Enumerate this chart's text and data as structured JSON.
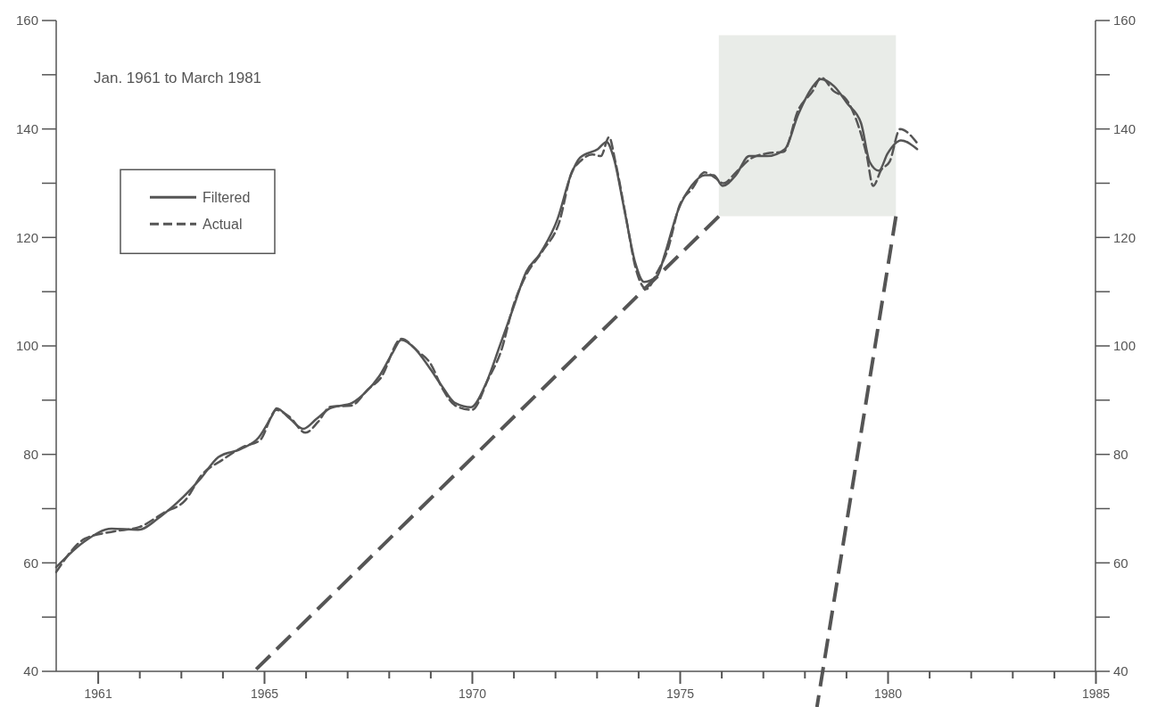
{
  "chart_data": {
    "type": "line",
    "annotations": [
      "Jan. 1961 to March 1981"
    ],
    "xlim": [
      1960,
      1985
    ],
    "xticks": [
      {
        "value": 1961,
        "label": "1961"
      },
      {
        "value": 1962,
        "label": null
      },
      {
        "value": 1963,
        "label": null
      },
      {
        "value": 1964,
        "label": null
      },
      {
        "value": 1965,
        "label": "1965"
      },
      {
        "value": 1966,
        "label": null
      },
      {
        "value": 1967,
        "label": null
      },
      {
        "value": 1968,
        "label": null
      },
      {
        "value": 1969,
        "label": null
      },
      {
        "value": 1970,
        "label": "1970"
      },
      {
        "value": 1971,
        "label": null
      },
      {
        "value": 1972,
        "label": null
      },
      {
        "value": 1973,
        "label": null
      },
      {
        "value": 1974,
        "label": null
      },
      {
        "value": 1975,
        "label": "1975"
      },
      {
        "value": 1976,
        "label": null
      },
      {
        "value": 1977,
        "label": null
      },
      {
        "value": 1978,
        "label": null
      },
      {
        "value": 1979,
        "label": null
      },
      {
        "value": 1980,
        "label": "1980"
      },
      {
        "value": 1981,
        "label": null
      },
      {
        "value": 1982,
        "label": null
      },
      {
        "value": 1983,
        "label": null
      },
      {
        "value": 1984,
        "label": null
      },
      {
        "value": 1985,
        "label": "1985"
      }
    ],
    "ylim": [
      40,
      160
    ],
    "yticks": [
      40,
      {
        "value": 50,
        "label": null
      },
      60,
      {
        "value": 70,
        "label": null
      },
      80,
      {
        "value": 90,
        "label": null
      },
      100,
      {
        "value": 110,
        "label": null
      },
      120,
      {
        "value": 130,
        "label": null
      },
      140,
      {
        "value": 150,
        "label": null
      },
      160
    ],
    "y2lim": [
      40,
      160
    ],
    "y2ticks": [
      40,
      {
        "value": 50,
        "label": null
      },
      60,
      {
        "value": 70,
        "label": null
      },
      80,
      {
        "value": 90,
        "label": null
      },
      100,
      {
        "value": 110,
        "label": null
      },
      120,
      {
        "value": 130,
        "label": null
      },
      140,
      {
        "value": 150,
        "label": null
      },
      160
    ],
    "grid": false,
    "legend": "top left",
    "series": [
      {
        "name": "Filtered",
        "color": "#555555",
        "line_style": "solid",
        "x": [
          1960.0,
          1960.69,
          1961.33,
          1961.97,
          1962.5,
          1963.05,
          1963.48,
          1963.9,
          1964.44,
          1964.87,
          1965.19,
          1965.3,
          1965.62,
          1965.94,
          1966.27,
          1966.59,
          1967.12,
          1967.45,
          1967.77,
          1968.09,
          1968.3,
          1968.63,
          1968.95,
          1969.27,
          1969.59,
          1969.98,
          1970.34,
          1970.67,
          1970.99,
          1971.31,
          1971.63,
          1972.06,
          1972.38,
          1972.6,
          1973.03,
          1973.24,
          1973.41,
          1973.67,
          1973.93,
          1974.14,
          1974.46,
          1974.64,
          1974.96,
          1975.28,
          1975.6,
          1975.82,
          1976.03,
          1976.35,
          1976.67,
          1977.1,
          1977.53,
          1977.85,
          1978.18,
          1978.39,
          1978.71,
          1979.03,
          1979.36,
          1979.57,
          1979.79,
          1980.0,
          1980.32,
          1980.71
        ],
        "values": [
          59.2,
          64.0,
          66.3,
          66.1,
          68.5,
          72.1,
          75.6,
          79.5,
          81.0,
          83.1,
          87.1,
          88.5,
          86.6,
          84.7,
          86.6,
          88.5,
          89.5,
          91.5,
          94.4,
          98.7,
          101.1,
          99.5,
          96.3,
          92.7,
          89.5,
          88.7,
          93.1,
          100.0,
          106.9,
          113.7,
          116.9,
          123.4,
          131.5,
          134.7,
          136.3,
          137.6,
          134.7,
          125.0,
          115.3,
          111.8,
          112.9,
          116.9,
          125.0,
          129.5,
          131.5,
          131.5,
          129.5,
          131.5,
          135.0,
          135.0,
          136.3,
          142.7,
          147.6,
          149.2,
          147.9,
          144.7,
          141.1,
          133.9,
          132.3,
          135.5,
          137.9,
          136.3
        ]
      },
      {
        "name": "Actual",
        "color": "#555555",
        "line_style": "dashed",
        "x": [
          1960.0,
          1960.7,
          1961.4,
          1962.0,
          1962.6,
          1963.1,
          1963.5,
          1964.0,
          1964.5,
          1964.9,
          1965.3,
          1965.6,
          1966.0,
          1966.3,
          1966.6,
          1967.1,
          1967.5,
          1967.8,
          1968.3,
          1968.7,
          1969.0,
          1969.3,
          1969.6,
          1970.0,
          1970.4,
          1970.7,
          1971.0,
          1971.3,
          1971.7,
          1972.1,
          1972.4,
          1972.6,
          1972.9,
          1973.1,
          1973.3,
          1973.45,
          1973.7,
          1973.95,
          1974.2,
          1974.45,
          1974.7,
          1975.0,
          1975.3,
          1975.6,
          1975.85,
          1976.05,
          1976.35,
          1976.7,
          1977.1,
          1977.5,
          1977.85,
          1978.2,
          1978.4,
          1978.7,
          1979.0,
          1979.3,
          1979.5,
          1979.65,
          1979.85,
          1980.05,
          1980.3,
          1980.7
        ],
        "values": [
          58.3,
          64.5,
          65.8,
          66.6,
          69.3,
          71.5,
          76.2,
          79.0,
          81.4,
          82.6,
          88.2,
          87.0,
          84.0,
          86.0,
          88.8,
          89.0,
          92.0,
          94.0,
          101.3,
          99.0,
          96.8,
          92.0,
          89.0,
          88.2,
          94.0,
          99.0,
          107.5,
          113.0,
          117.5,
          122.8,
          132.0,
          134.0,
          135.3,
          135.0,
          138.5,
          134.0,
          124.0,
          114.0,
          110.5,
          113.5,
          117.5,
          126.0,
          129.0,
          132.0,
          131.0,
          130.0,
          132.0,
          134.5,
          135.5,
          135.8,
          143.5,
          147.0,
          149.5,
          147.0,
          145.5,
          140.5,
          135.0,
          129.5,
          132.5,
          134.0,
          140.0,
          137.5
        ]
      }
    ]
  }
}
